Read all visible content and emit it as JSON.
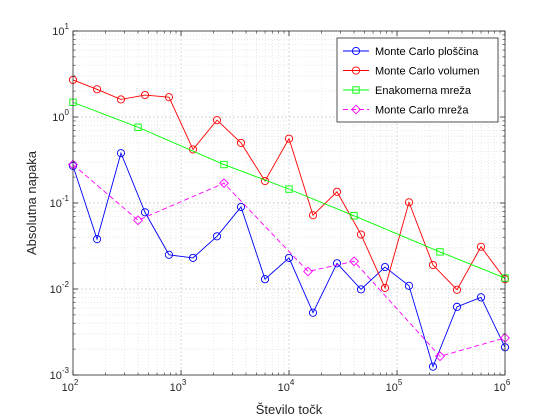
{
  "chart_data": {
    "type": "line",
    "xlabel": "Število točk",
    "ylabel": "Absolutna napaka",
    "x_scale": "log",
    "y_scale": "log",
    "xlim": [
      100,
      1000000
    ],
    "ylim": [
      0.001,
      10
    ],
    "grid": true,
    "minor_grid": true,
    "legend_position": "top-right",
    "x_ticks": [
      {
        "value": 100,
        "base": "10",
        "exp": "2"
      },
      {
        "value": 1000,
        "base": "10",
        "exp": "3"
      },
      {
        "value": 10000,
        "base": "10",
        "exp": "4"
      },
      {
        "value": 100000,
        "base": "10",
        "exp": "5"
      },
      {
        "value": 1000000,
        "base": "10",
        "exp": "6"
      }
    ],
    "y_ticks": [
      {
        "value": 0.001,
        "base": "10",
        "exp": "-3"
      },
      {
        "value": 0.01,
        "base": "10",
        "exp": "-2"
      },
      {
        "value": 0.1,
        "base": "10",
        "exp": "-1"
      },
      {
        "value": 1,
        "base": "10",
        "exp": "0"
      },
      {
        "value": 10,
        "base": "10",
        "exp": "1"
      }
    ],
    "series": [
      {
        "name": "Monte Carlo ploščina",
        "color": "#0000ff",
        "marker": "circle",
        "dash": "solid",
        "x": [
          100,
          167,
          278,
          464,
          774,
          1292,
          2154,
          3594,
          5995,
          10000,
          16681,
          27826,
          46416,
          77426,
          129155,
          215443,
          359381,
          599484,
          1000000
        ],
        "y": [
          0.27,
          0.038,
          0.38,
          0.078,
          0.025,
          0.023,
          0.041,
          0.09,
          0.013,
          0.023,
          0.0053,
          0.0199,
          0.0099,
          0.018,
          0.0109,
          0.00125,
          0.0062,
          0.008,
          0.0021
        ]
      },
      {
        "name": "Monte Carlo volumen",
        "color": "#ff0000",
        "marker": "circle",
        "dash": "solid",
        "x": [
          100,
          167,
          278,
          464,
          774,
          1292,
          2154,
          3594,
          5995,
          10000,
          16681,
          27826,
          46416,
          77426,
          129155,
          215443,
          359381,
          599484,
          1000000
        ],
        "y": [
          2.7,
          2.1,
          1.6,
          1.8,
          1.7,
          0.42,
          0.92,
          0.5,
          0.18,
          0.56,
          0.072,
          0.135,
          0.043,
          0.0103,
          0.102,
          0.019,
          0.0098,
          0.031,
          0.013
        ]
      },
      {
        "name": "Enakomerna mreža",
        "color": "#00ff00",
        "marker": "square",
        "dash": "solid",
        "x": [
          100,
          400,
          2500,
          10000,
          40000,
          250000,
          1000000
        ],
        "y": [
          1.48,
          0.76,
          0.28,
          0.145,
          0.071,
          0.027,
          0.0134
        ]
      },
      {
        "name": "Monte Carlo mreža",
        "color": "#ff00ff",
        "marker": "diamond",
        "dash": "dashed",
        "x": [
          100,
          400,
          2500,
          15000,
          40000,
          250000,
          1000000
        ],
        "y": [
          0.28,
          0.063,
          0.17,
          0.016,
          0.021,
          0.00165,
          0.0027
        ]
      }
    ]
  }
}
